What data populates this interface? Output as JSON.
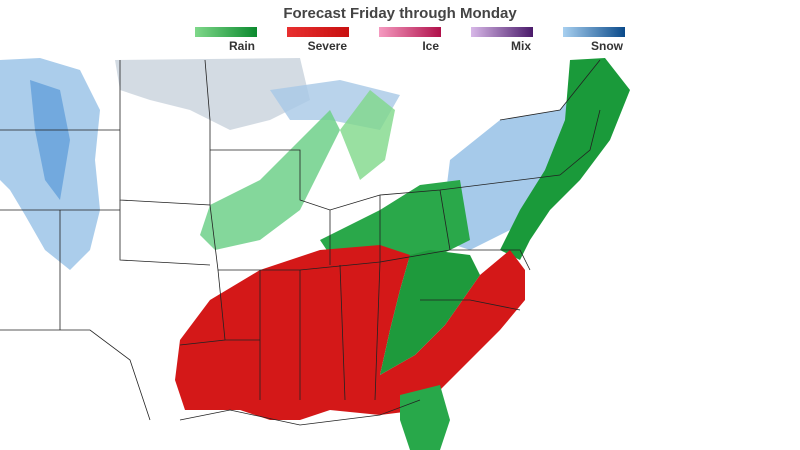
{
  "header": {
    "title": "Forecast Friday through Monday"
  },
  "legend": [
    {
      "label": "Rain",
      "colors": [
        "#7fd88a",
        "#0b8a2e"
      ]
    },
    {
      "label": "Severe",
      "colors": [
        "#e83030",
        "#c81010"
      ]
    },
    {
      "label": "Ice",
      "colors": [
        "#f59ac0",
        "#b0104a"
      ]
    },
    {
      "label": "Mix",
      "colors": [
        "#d8b8e8",
        "#4a1a6a"
      ]
    },
    {
      "label": "Snow",
      "colors": [
        "#a8d0f0",
        "#0a4a8a"
      ]
    }
  ]
}
